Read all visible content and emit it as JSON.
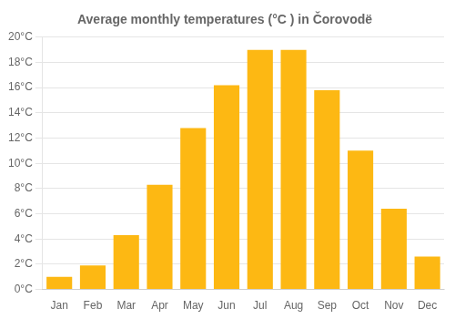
{
  "chart_data": {
    "type": "bar",
    "title": "Average monthly temperatures (°C ) in Čorovodë",
    "categories": [
      "Jan",
      "Feb",
      "Mar",
      "Apr",
      "May",
      "Jun",
      "Jul",
      "Aug",
      "Sep",
      "Oct",
      "Nov",
      "Dec"
    ],
    "values": [
      1.0,
      1.9,
      4.3,
      8.3,
      12.8,
      16.2,
      19.0,
      19.0,
      15.8,
      11.0,
      6.4,
      2.6
    ],
    "color": "#FDB813",
    "ylim": [
      0,
      20
    ],
    "yticks": [
      {
        "value": 0,
        "label": "0°C"
      },
      {
        "value": 2,
        "label": "2°C"
      },
      {
        "value": 4,
        "label": "4°C"
      },
      {
        "value": 6,
        "label": "6°C"
      },
      {
        "value": 8,
        "label": "8°C"
      },
      {
        "value": 10,
        "label": "10°C"
      },
      {
        "value": 12,
        "label": "12°C"
      },
      {
        "value": 14,
        "label": "14°C"
      },
      {
        "value": 16,
        "label": "16°C"
      },
      {
        "value": 18,
        "label": "18°C"
      },
      {
        "value": 20,
        "label": "20°C"
      }
    ],
    "grid": true
  }
}
